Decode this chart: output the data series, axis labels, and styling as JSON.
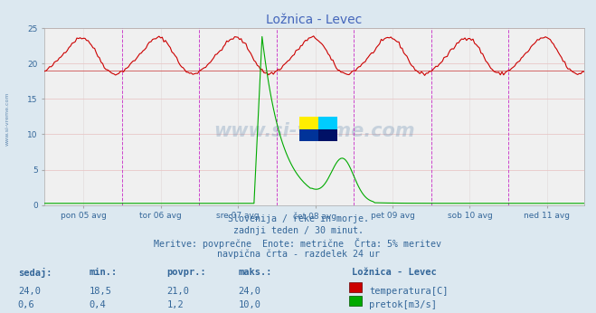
{
  "title": "Ložnica - Levec",
  "bg_color": "#dce8f0",
  "plot_bg_color": "#f0f0f0",
  "temp_color": "#cc0000",
  "flow_color": "#00aa00",
  "vline_color": "#cc44cc",
  "avg_line_color": "#cc4444",
  "x_labels": [
    "pon 05 avg",
    "tor 06 avg",
    "sre 07 avg",
    "čet 08 avg",
    "pet 09 avg",
    "sob 10 avg",
    "ned 11 avg"
  ],
  "ylim_temp": [
    0,
    25
  ],
  "ylim_flow": [
    0,
    10.5
  ],
  "avg_temp": 19.0,
  "n_points": 336,
  "watermark": "www.si-vreme.com",
  "sub_text1": "Slovenija / reke in morje.",
  "sub_text2": "zadnji teden / 30 minut.",
  "sub_text3": "Meritve: povprečne  Enote: metrične  Črta: 5% meritev",
  "sub_text4": "navpična črta - razdelek 24 ur",
  "table_headers": [
    "sedaj:",
    "min.:",
    "povpr.:",
    "maks.:"
  ],
  "table_label": "Ložnica - Levec",
  "temp_row": [
    "24,0",
    "18,5",
    "21,0",
    "24,0"
  ],
  "flow_row": [
    "0,6",
    "0,4",
    "1,2",
    "10,0"
  ],
  "temp_label": "temperatura[C]",
  "flow_label": "pretok[m3/s]",
  "text_color": "#336699",
  "title_color": "#4466bb"
}
